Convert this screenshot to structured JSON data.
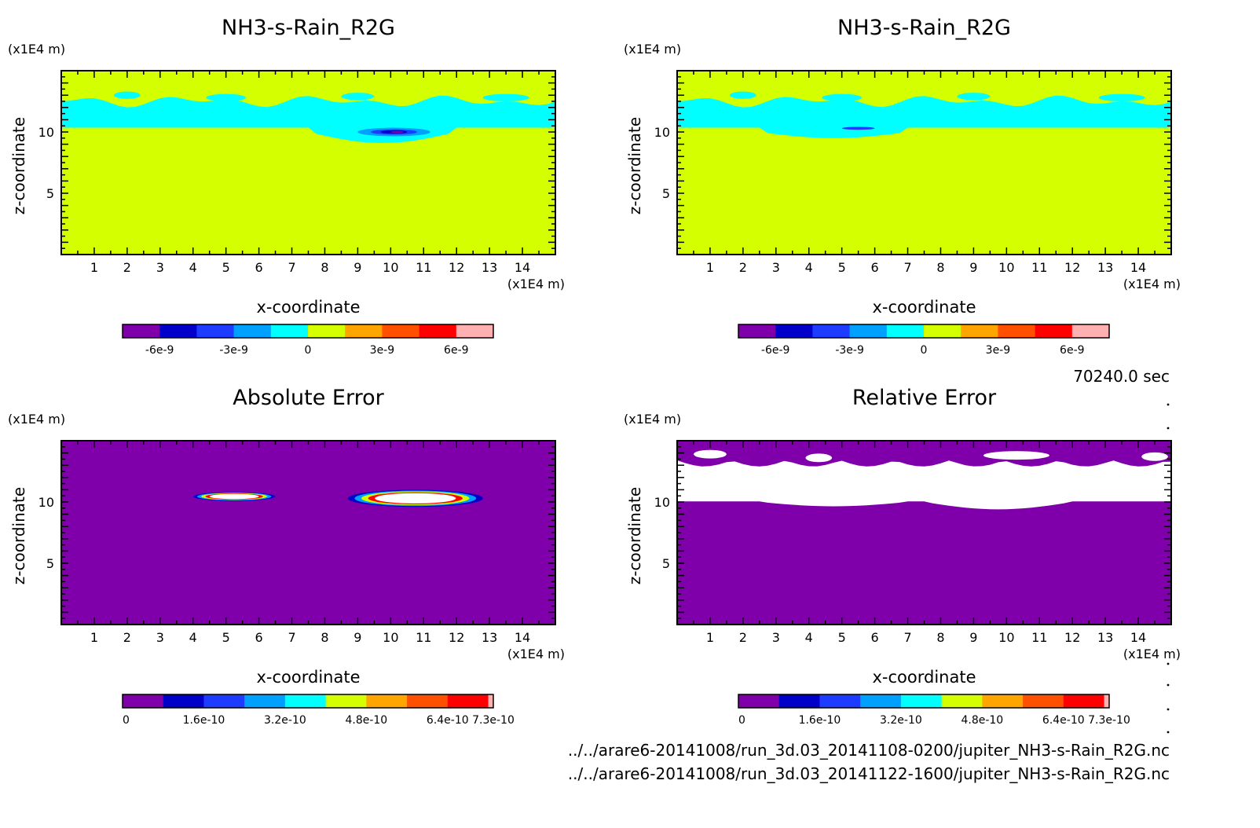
{
  "time_label": "70240.0 sec",
  "file_paths": [
    "../../arare6-20141008/run_3d.03_20141108-0200/jupiter_NH3-s-Rain_R2G.nc",
    "../../arare6-20141008/run_3d.03_20141122-1600/jupiter_NH3-s-Rain_R2G.nc"
  ],
  "colors": {
    "field_background": "#d4ff00",
    "cloud_band": "#00ffff",
    "error_background": "#7f00aa",
    "relative_error_band": "#ffffff"
  },
  "chart_data": [
    {
      "type": "heatmap",
      "title": "NH3-s-Rain_R2G",
      "xlabel": "x-coordinate",
      "ylabel": "z-coordinate",
      "x_unit": "(x1E4 m)",
      "y_unit": "(x1E4 m)",
      "xlim": [
        0,
        15
      ],
      "ylim": [
        0,
        15
      ],
      "x_ticks": [
        "1",
        "2",
        "3",
        "4",
        "5",
        "6",
        "7",
        "8",
        "9",
        "10",
        "11",
        "12",
        "13",
        "14"
      ],
      "y_ticks": [
        "5",
        "10"
      ],
      "colorbar": {
        "colors": [
          "#7f00aa",
          "#0000c8",
          "#1e3cff",
          "#00a0ff",
          "#00ffff",
          "#d4ff00",
          "#ffa500",
          "#ff5000",
          "#ff0000",
          "#ffb0b0"
        ],
        "tick_labels": [
          "-6e-9",
          "-3e-9",
          "0",
          "3e-9",
          "6e-9"
        ]
      },
      "field": {
        "background_value": "0 to 1.5e-9",
        "band_z": [
          10.0,
          12.5
        ],
        "band_value": "-1.5e-9 to 0",
        "min_value_location": [
          10.1,
          10.0
        ]
      }
    },
    {
      "type": "heatmap",
      "title": "NH3-s-Rain_R2G",
      "xlabel": "x-coordinate",
      "ylabel": "z-coordinate",
      "x_unit": "(x1E4 m)",
      "y_unit": "(x1E4 m)",
      "xlim": [
        0,
        15
      ],
      "ylim": [
        0,
        15
      ],
      "x_ticks": [
        "1",
        "2",
        "3",
        "4",
        "5",
        "6",
        "7",
        "8",
        "9",
        "10",
        "11",
        "12",
        "13",
        "14"
      ],
      "y_ticks": [
        "5",
        "10"
      ],
      "colorbar": {
        "colors": [
          "#7f00aa",
          "#0000c8",
          "#1e3cff",
          "#00a0ff",
          "#00ffff",
          "#d4ff00",
          "#ffa500",
          "#ff5000",
          "#ff0000",
          "#ffb0b0"
        ],
        "tick_labels": [
          "-6e-9",
          "-3e-9",
          "0",
          "3e-9",
          "6e-9"
        ]
      },
      "field": {
        "background_value": "0 to 1.5e-9",
        "band_z": [
          10.0,
          12.5
        ],
        "band_value": "-1.5e-9 to 0",
        "min_value_location": [
          5.5,
          10.3
        ]
      }
    },
    {
      "type": "heatmap",
      "title": "Absolute Error",
      "xlabel": "x-coordinate",
      "ylabel": "z-coordinate",
      "x_unit": "(x1E4 m)",
      "y_unit": "(x1E4 m)",
      "xlim": [
        0,
        15
      ],
      "ylim": [
        0,
        15
      ],
      "x_ticks": [
        "1",
        "2",
        "3",
        "4",
        "5",
        "6",
        "7",
        "8",
        "9",
        "10",
        "11",
        "12",
        "13",
        "14"
      ],
      "y_ticks": [
        "5",
        "10"
      ],
      "colorbar": {
        "colors": [
          "#7f00aa",
          "#0000c8",
          "#1e3cff",
          "#00a0ff",
          "#00ffff",
          "#d4ff00",
          "#ffa500",
          "#ff5000",
          "#ff0000",
          "#ffb0b0"
        ],
        "tick_labels": [
          "0",
          "1.6e-10",
          "3.2e-10",
          "4.8e-10",
          "6.4e-10",
          "7.3e-10"
        ]
      },
      "field": {
        "background_value": "0",
        "hotspots": [
          {
            "x": [
              4.0,
              6.5
            ],
            "z": [
              10.1,
              10.8
            ]
          },
          {
            "x": [
              8.7,
              12.8
            ],
            "z": [
              9.6,
              11.0
            ]
          }
        ]
      }
    },
    {
      "type": "heatmap",
      "title": "Relative Error",
      "xlabel": "x-coordinate",
      "ylabel": "z-coordinate",
      "x_unit": "(x1E4 m)",
      "y_unit": "(x1E4 m)",
      "xlim": [
        0,
        15
      ],
      "ylim": [
        0,
        15
      ],
      "x_ticks": [
        "1",
        "2",
        "3",
        "4",
        "5",
        "6",
        "7",
        "8",
        "9",
        "10",
        "11",
        "12",
        "13",
        "14"
      ],
      "y_ticks": [
        "5",
        "10"
      ],
      "colorbar": {
        "colors": [
          "#7f00aa",
          "#0000c8",
          "#1e3cff",
          "#00a0ff",
          "#00ffff",
          "#d4ff00",
          "#ffa500",
          "#ff5000",
          "#ff0000",
          "#ffb0b0"
        ],
        "tick_labels": [
          "0",
          "1.6e-10",
          "3.2e-10",
          "4.8e-10",
          "6.4e-10",
          "7.3e-10"
        ]
      },
      "field": {
        "background_value": "0",
        "band_z": [
          10.0,
          14.0
        ],
        "band_value": "above 7.3e-10"
      }
    }
  ]
}
